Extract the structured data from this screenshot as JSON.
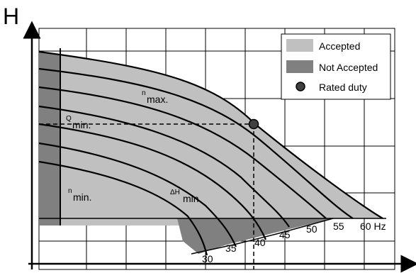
{
  "axes": {
    "y_label": "H"
  },
  "legend": {
    "items": [
      {
        "label": "Accepted",
        "color": "#c0c0c0",
        "kind": "swatch"
      },
      {
        "label": "Not Accepted",
        "color": "#808080",
        "kind": "swatch"
      },
      {
        "label": "Rated duty",
        "color": "#404040",
        "kind": "marker"
      }
    ]
  },
  "annotations": {
    "n_max_base": "n",
    "n_max_sub": "max.",
    "q_min_base": "Q",
    "q_min_sub": "min.",
    "n_min_base": "n",
    "n_min_sub": "min.",
    "dh_min_base": "ΔH",
    "dh_min_sub": "min."
  },
  "speed_curves": [
    {
      "label": "30"
    },
    {
      "label": "35"
    },
    {
      "label": "40"
    },
    {
      "label": "45"
    },
    {
      "label": "50"
    },
    {
      "label": "55"
    },
    {
      "label": "60 Hz"
    }
  ],
  "colors": {
    "accepted": "#c0c0c0",
    "not_accepted": "#808080",
    "rated_duty": "#404040",
    "grid": "#000000"
  }
}
